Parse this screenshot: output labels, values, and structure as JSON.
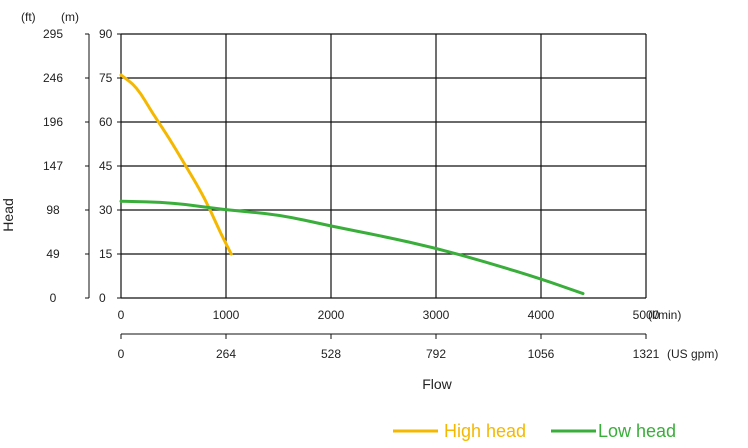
{
  "chart_data": {
    "type": "line",
    "xlabel": "Flow",
    "ylabel": "Head",
    "x_unit_primary": "(l/min)",
    "x_unit_secondary": "(US gpm)",
    "y_unit_m": "(m)",
    "y_unit_ft": "(ft)",
    "xlim": [
      0,
      5000
    ],
    "ylim": [
      0,
      90
    ],
    "grid": true,
    "legend_position": "bottom-right",
    "x_ticks": [
      "0",
      "1000",
      "2000",
      "3000",
      "4000",
      "5000"
    ],
    "x_ticks_gpm": [
      "0",
      "264",
      "528",
      "792",
      "1056",
      "1321"
    ],
    "y_ticks_m": [
      "0",
      "15",
      "30",
      "45",
      "60",
      "75",
      "90"
    ],
    "y_ticks_ft": [
      "0",
      "49",
      "98",
      "147",
      "196",
      "246",
      "295"
    ],
    "series": [
      {
        "name": "High head",
        "color": "#f5b800",
        "x": [
          0,
          150,
          300,
          450,
          600,
          750,
          850,
          950,
          1050
        ],
        "y": [
          76,
          72,
          63,
          55,
          46,
          37,
          30,
          22,
          15
        ]
      },
      {
        "name": "Low head",
        "color": "#3aae3a",
        "x": [
          0,
          500,
          1000,
          1500,
          2000,
          2500,
          3000,
          3500,
          4000,
          4400
        ],
        "y": [
          33,
          32.5,
          30,
          28.5,
          24.5,
          21,
          17,
          12,
          6.5,
          1.5
        ]
      }
    ]
  }
}
